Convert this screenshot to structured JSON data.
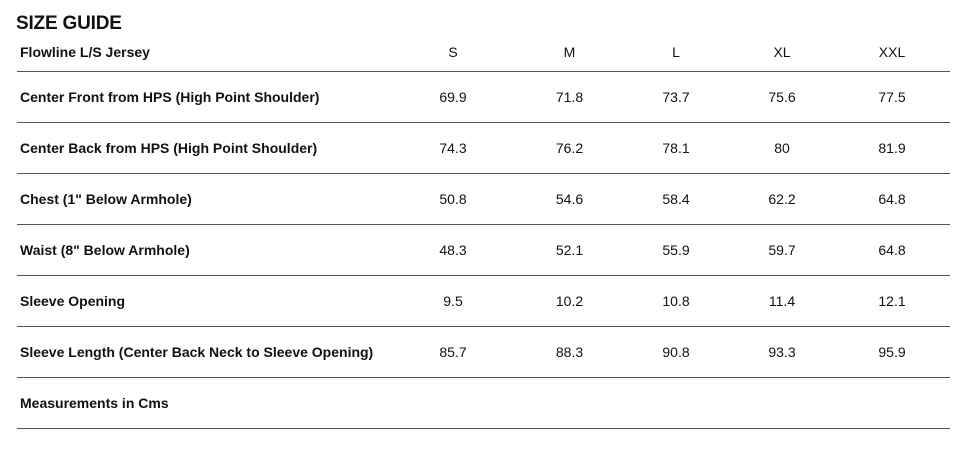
{
  "title": "SIZE GUIDE",
  "table": {
    "product_name": "Flowline L/S Jersey",
    "sizes": [
      "S",
      "M",
      "L",
      "XL",
      "XXL"
    ],
    "rows": [
      {
        "label": "Center Front from HPS (High Point Shoulder)",
        "values": [
          "69.9",
          "71.8",
          "73.7",
          "75.6",
          "77.5"
        ]
      },
      {
        "label": "Center Back from HPS (High Point Shoulder)",
        "values": [
          "74.3",
          "76.2",
          "78.1",
          "80",
          "81.9"
        ]
      },
      {
        "label": "Chest (1\" Below Armhole)",
        "values": [
          "50.8",
          "54.6",
          "58.4",
          "62.2",
          "64.8"
        ]
      },
      {
        "label": "Waist (8\" Below Armhole)",
        "values": [
          "48.3",
          "52.1",
          "55.9",
          "59.7",
          "64.8"
        ]
      },
      {
        "label": "Sleeve Opening",
        "values": [
          "9.5",
          "10.2",
          "10.8",
          "11.4",
          "12.1"
        ]
      },
      {
        "label": "Sleeve Length (Center Back Neck to Sleeve Opening)",
        "values": [
          "85.7",
          "88.3",
          "90.8",
          "93.3",
          "95.9"
        ]
      }
    ],
    "footnote": "Measurements in Cms"
  }
}
